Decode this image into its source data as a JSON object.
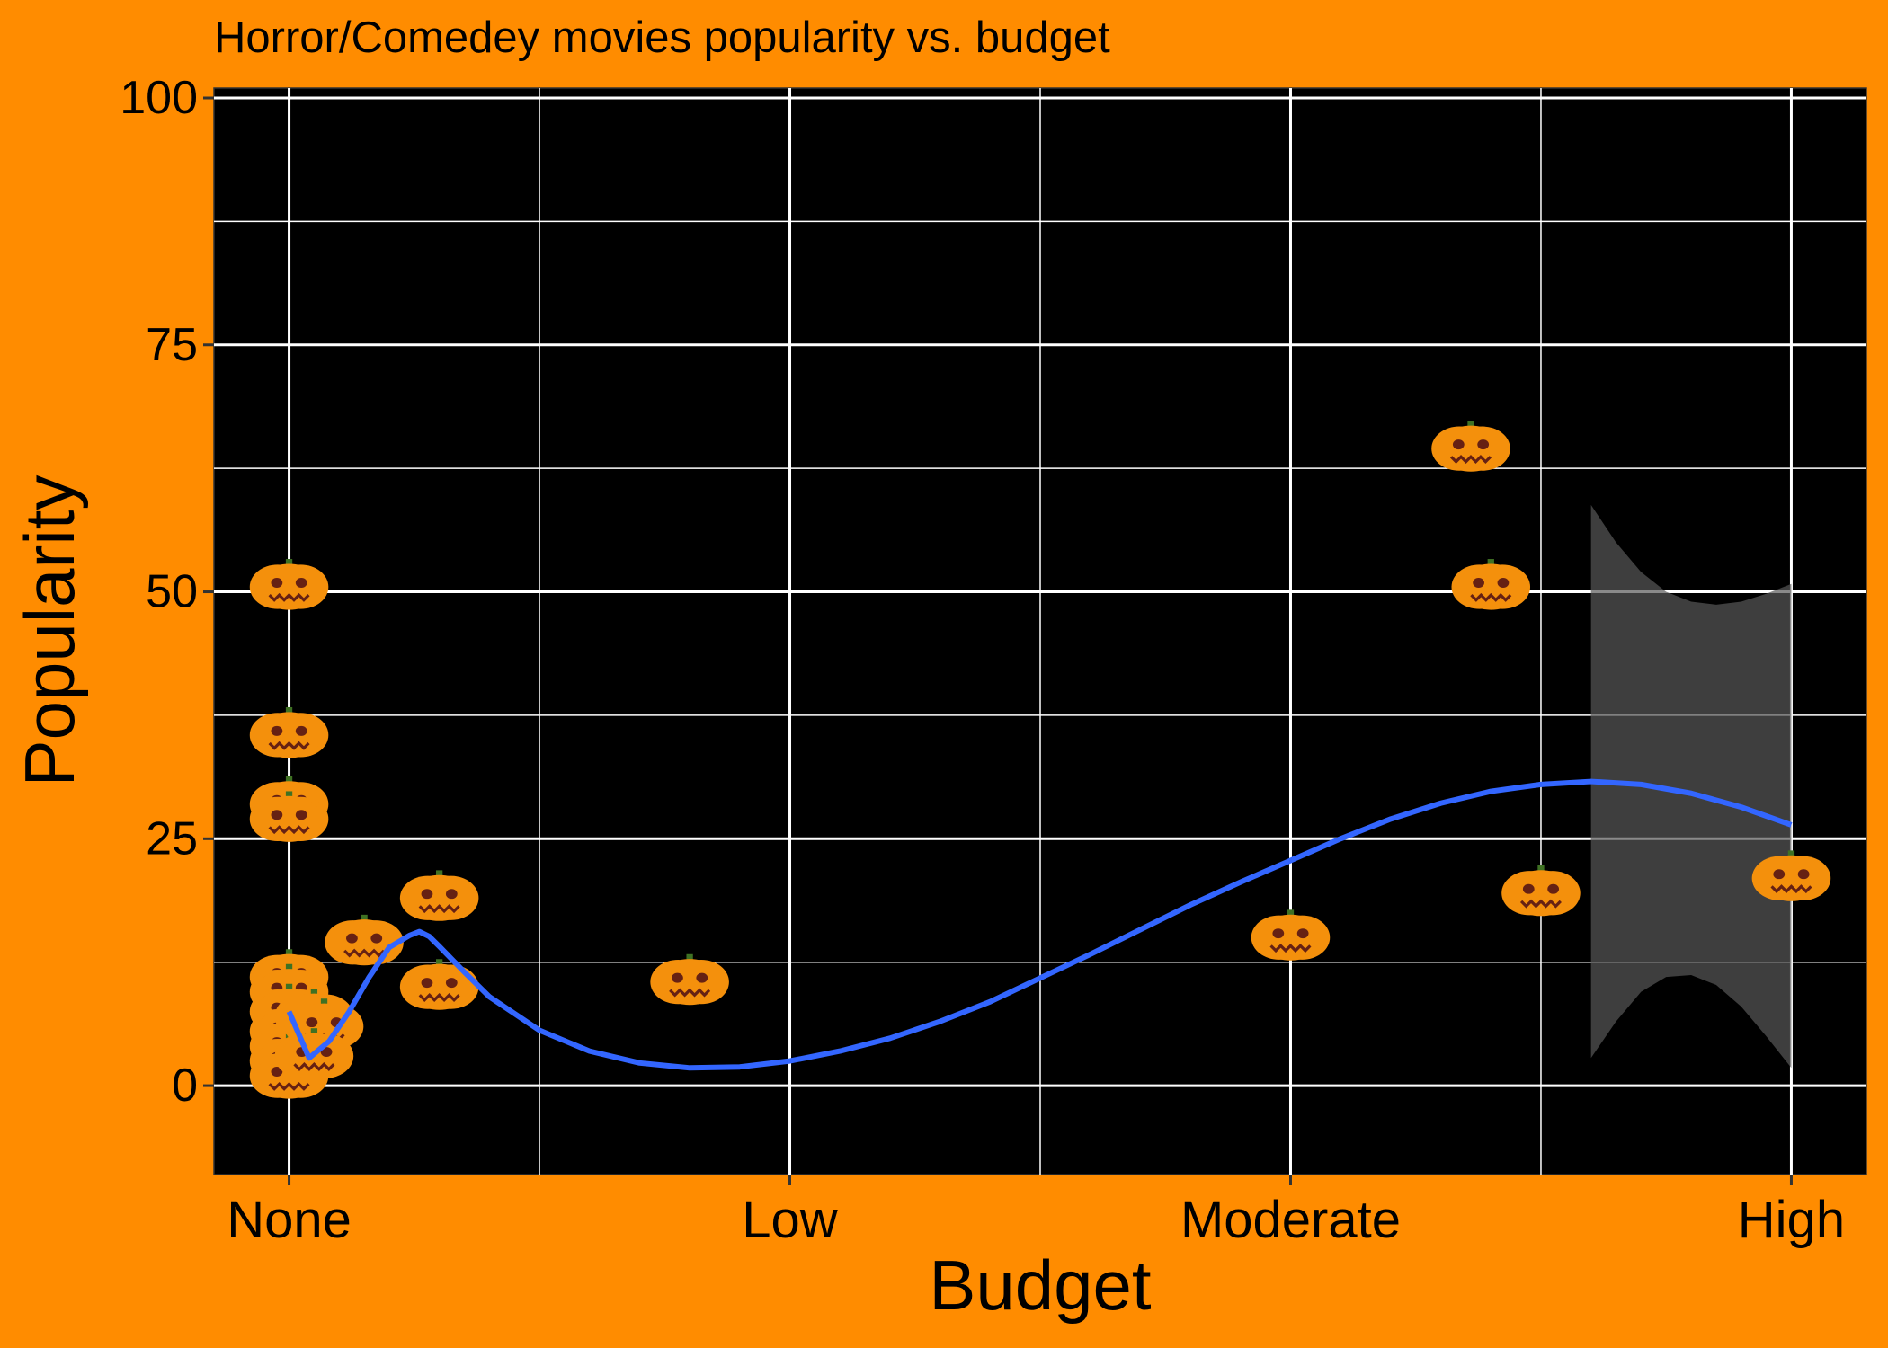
{
  "chart_data": {
    "type": "scatter",
    "title": "Horror/Comedey movies popularity vs. budget",
    "xlabel": "Budget",
    "ylabel": "Popularity",
    "x_categories": [
      "None",
      "Low",
      "Moderate",
      "High"
    ],
    "xlim": [
      -0.15,
      3.15
    ],
    "ylim": [
      -9,
      101
    ],
    "y_ticks": [
      0,
      25,
      50,
      75,
      100
    ],
    "grid": true,
    "marker": "pumpkin-icon",
    "colors": {
      "background": "#FF8C00",
      "panel": "#000000",
      "grid": "#FFFFFF",
      "smooth_line": "#3366FF",
      "confidence_band": "#595959",
      "pumpkin_body": "#F4900C",
      "pumpkin_face": "#662113",
      "pumpkin_stem": "#3F7123"
    },
    "points": [
      {
        "x": 0.0,
        "y": 50.5
      },
      {
        "x": 0.0,
        "y": 35.5
      },
      {
        "x": 0.0,
        "y": 28.5
      },
      {
        "x": 0.0,
        "y": 27.0
      },
      {
        "x": 0.0,
        "y": 11.0
      },
      {
        "x": 0.0,
        "y": 9.5
      },
      {
        "x": 0.0,
        "y": 7.5
      },
      {
        "x": 0.0,
        "y": 5.5
      },
      {
        "x": 0.0,
        "y": 4.0
      },
      {
        "x": 0.0,
        "y": 2.5
      },
      {
        "x": 0.0,
        "y": 1.0
      },
      {
        "x": 0.05,
        "y": 7.0
      },
      {
        "x": 0.07,
        "y": 6.0
      },
      {
        "x": 0.05,
        "y": 3.0
      },
      {
        "x": 0.15,
        "y": 14.5
      },
      {
        "x": 0.3,
        "y": 19.0
      },
      {
        "x": 0.3,
        "y": 10.0
      },
      {
        "x": 0.8,
        "y": 10.5
      },
      {
        "x": 2.0,
        "y": 15.0
      },
      {
        "x": 2.36,
        "y": 64.5
      },
      {
        "x": 2.4,
        "y": 50.5
      },
      {
        "x": 2.5,
        "y": 19.5
      },
      {
        "x": 3.0,
        "y": 21.0
      }
    ],
    "smooth": {
      "x": [
        0.0,
        0.04,
        0.08,
        0.12,
        0.16,
        0.2,
        0.24,
        0.26,
        0.28,
        0.3,
        0.35,
        0.4,
        0.5,
        0.6,
        0.7,
        0.8,
        0.9,
        1.0,
        1.1,
        1.2,
        1.3,
        1.4,
        1.5,
        1.6,
        1.7,
        1.8,
        1.9,
        2.0,
        2.1,
        2.2,
        2.3,
        2.4,
        2.5,
        2.6,
        2.7,
        2.8,
        2.9,
        3.0
      ],
      "y": [
        7.5,
        2.8,
        4.5,
        7.5,
        11.0,
        14.0,
        15.2,
        15.6,
        15.1,
        14.1,
        11.5,
        9.0,
        5.6,
        3.5,
        2.3,
        1.8,
        1.9,
        2.5,
        3.5,
        4.8,
        6.5,
        8.5,
        10.9,
        13.3,
        15.8,
        18.3,
        20.6,
        22.8,
        25.0,
        27.0,
        28.6,
        29.8,
        30.5,
        30.8,
        30.5,
        29.6,
        28.2,
        26.4
      ],
      "band_x": [
        2.6,
        2.65,
        2.7,
        2.75,
        2.8,
        2.85,
        2.9,
        2.95,
        3.0
      ],
      "band_upper": [
        58.8,
        55.0,
        52.0,
        50.0,
        49.0,
        48.7,
        49.0,
        49.8,
        50.8
      ],
      "band_lower": [
        2.8,
        6.5,
        9.5,
        11.0,
        11.2,
        10.2,
        8.0,
        5.0,
        1.8
      ]
    }
  }
}
